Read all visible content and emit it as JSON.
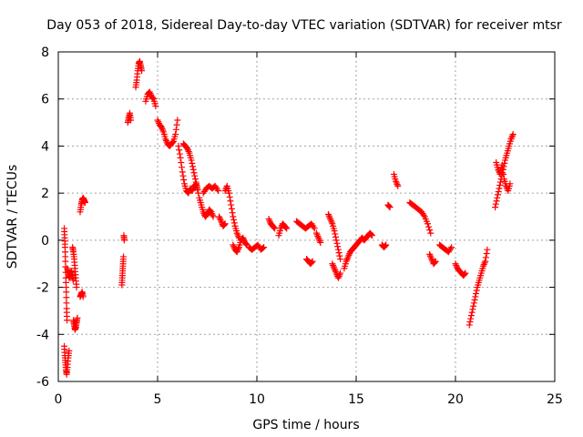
{
  "chart_data": {
    "type": "scatter",
    "title": "Day 053 of 2018, Sidereal Day-to-day VTEC variation (SDTVAR) for receiver mtsr",
    "xlabel": "GPS time / hours",
    "ylabel": "SDTVAR / TECUs",
    "xlim": [
      0,
      25
    ],
    "ylim": [
      -6,
      8
    ],
    "xticks": [
      0,
      5,
      10,
      15,
      20,
      25
    ],
    "yticks": [
      -6,
      -4,
      -2,
      0,
      2,
      4,
      6,
      8
    ],
    "grid": true,
    "marker": "+",
    "color": "#ff0000",
    "series": [
      {
        "name": "SDTVAR",
        "segments": [
          [
            [
              0.3,
              0.5
            ],
            [
              0.32,
              0.1
            ],
            [
              0.34,
              -0.3
            ],
            [
              0.36,
              -0.9
            ],
            [
              0.38,
              -1.6
            ],
            [
              0.4,
              -2.2
            ],
            [
              0.42,
              -2.9
            ],
            [
              0.44,
              -3.4
            ]
          ],
          [
            [
              0.3,
              -4.5
            ],
            [
              0.33,
              -4.9
            ],
            [
              0.36,
              -5.2
            ],
            [
              0.39,
              -5.5
            ],
            [
              0.42,
              -5.7
            ],
            [
              0.46,
              -5.4
            ],
            [
              0.5,
              -5.0
            ],
            [
              0.54,
              -4.7
            ]
          ],
          [
            [
              0.45,
              -1.2
            ],
            [
              0.5,
              -1.4
            ],
            [
              0.55,
              -1.6
            ],
            [
              0.6,
              -1.5
            ],
            [
              0.65,
              -1.3
            ],
            [
              0.7,
              -1.5
            ],
            [
              0.75,
              -1.7
            ]
          ],
          [
            [
              0.72,
              -0.3
            ],
            [
              0.76,
              -0.5
            ],
            [
              0.8,
              -0.8
            ],
            [
              0.84,
              -1.2
            ],
            [
              0.88,
              -1.6
            ],
            [
              0.92,
              -2.0
            ]
          ],
          [
            [
              0.76,
              -3.4
            ],
            [
              0.8,
              -3.6
            ],
            [
              0.84,
              -3.8
            ],
            [
              0.88,
              -3.7
            ],
            [
              0.92,
              -3.5
            ],
            [
              0.96,
              -3.3
            ]
          ],
          [
            [
              1.1,
              -2.4
            ],
            [
              1.15,
              -2.3
            ],
            [
              1.2,
              -2.2
            ],
            [
              1.25,
              -2.4
            ]
          ],
          [
            [
              1.1,
              1.2
            ],
            [
              1.15,
              1.5
            ],
            [
              1.2,
              1.7
            ],
            [
              1.25,
              1.8
            ],
            [
              1.3,
              1.7
            ],
            [
              1.35,
              1.6
            ]
          ],
          [
            [
              3.2,
              -1.9
            ],
            [
              3.22,
              -1.6
            ],
            [
              3.24,
              -1.3
            ],
            [
              3.26,
              -1.0
            ],
            [
              3.28,
              -0.7
            ]
          ],
          [
            [
              3.3,
              0.2
            ],
            [
              3.32,
              0.0
            ]
          ],
          [
            [
              3.5,
              5.0
            ],
            [
              3.55,
              5.2
            ],
            [
              3.6,
              5.4
            ],
            [
              3.65,
              5.1
            ]
          ],
          [
            [
              3.9,
              6.5
            ],
            [
              3.95,
              6.8
            ],
            [
              4.0,
              7.2
            ],
            [
              4.05,
              7.5
            ],
            [
              4.1,
              7.6
            ],
            [
              4.15,
              7.4
            ],
            [
              4.2,
              7.2
            ]
          ],
          [
            [
              4.4,
              5.9
            ],
            [
              4.5,
              6.2
            ],
            [
              4.6,
              6.3
            ],
            [
              4.7,
              6.1
            ],
            [
              4.8,
              6.0
            ],
            [
              4.9,
              5.7
            ]
          ],
          [
            [
              5.0,
              5.1
            ],
            [
              5.1,
              4.9
            ],
            [
              5.2,
              4.8
            ],
            [
              5.3,
              4.6
            ],
            [
              5.4,
              4.3
            ],
            [
              5.5,
              4.1
            ],
            [
              5.6,
              4.0
            ],
            [
              5.7,
              4.1
            ],
            [
              5.8,
              4.2
            ],
            [
              5.9,
              4.5
            ],
            [
              6.0,
              5.1
            ]
          ],
          [
            [
              6.05,
              4.0
            ],
            [
              6.15,
              3.5
            ],
            [
              6.25,
              2.9
            ],
            [
              6.35,
              2.4
            ],
            [
              6.45,
              2.1
            ],
            [
              6.55,
              2.0
            ],
            [
              6.65,
              2.2
            ],
            [
              6.75,
              2.1
            ],
            [
              6.85,
              2.3
            ],
            [
              6.95,
              2.4
            ],
            [
              7.05,
              2.0
            ]
          ],
          [
            [
              6.3,
              4.1
            ],
            [
              6.4,
              4.0
            ],
            [
              6.5,
              3.9
            ],
            [
              6.6,
              3.7
            ],
            [
              6.7,
              3.4
            ],
            [
              6.8,
              3.0
            ],
            [
              6.9,
              2.6
            ],
            [
              7.0,
              2.2
            ]
          ],
          [
            [
              7.1,
              1.8
            ],
            [
              7.2,
              1.5
            ],
            [
              7.3,
              1.2
            ],
            [
              7.4,
              1.0
            ],
            [
              7.5,
              1.1
            ],
            [
              7.6,
              1.3
            ],
            [
              7.7,
              1.2
            ],
            [
              7.8,
              1.0
            ]
          ],
          [
            [
              7.3,
              2.0
            ],
            [
              7.45,
              2.2
            ],
            [
              7.6,
              2.3
            ],
            [
              7.75,
              2.2
            ],
            [
              7.9,
              2.3
            ],
            [
              8.05,
              2.1
            ]
          ],
          [
            [
              8.1,
              1.0
            ],
            [
              8.2,
              0.8
            ],
            [
              8.3,
              0.6
            ],
            [
              8.4,
              0.7
            ]
          ],
          [
            [
              8.4,
              2.1
            ],
            [
              8.5,
              2.3
            ],
            [
              8.6,
              2.0
            ],
            [
              8.7,
              1.5
            ],
            [
              8.8,
              1.0
            ],
            [
              8.9,
              0.6
            ],
            [
              9.0,
              0.3
            ],
            [
              9.1,
              0.1
            ]
          ],
          [
            [
              8.8,
              -0.2
            ],
            [
              8.9,
              -0.4
            ],
            [
              9.0,
              -0.5
            ],
            [
              9.1,
              -0.3
            ],
            [
              9.2,
              0.0
            ],
            [
              9.3,
              0.1
            ],
            [
              9.4,
              -0.1
            ],
            [
              9.5,
              -0.2
            ]
          ],
          [
            [
              9.6,
              -0.3
            ],
            [
              9.75,
              -0.4
            ],
            [
              9.9,
              -0.3
            ],
            [
              10.05,
              -0.2
            ],
            [
              10.2,
              -0.4
            ],
            [
              10.35,
              -0.3
            ]
          ],
          [
            [
              10.6,
              0.9
            ],
            [
              10.7,
              0.7
            ],
            [
              10.8,
              0.6
            ],
            [
              10.9,
              0.5
            ]
          ],
          [
            [
              11.1,
              0.2
            ],
            [
              11.2,
              0.5
            ],
            [
              11.3,
              0.7
            ],
            [
              11.4,
              0.6
            ],
            [
              11.5,
              0.5
            ]
          ],
          [
            [
              12.0,
              0.8
            ],
            [
              12.15,
              0.7
            ],
            [
              12.3,
              0.6
            ],
            [
              12.45,
              0.5
            ],
            [
              12.6,
              0.6
            ],
            [
              12.75,
              0.7
            ],
            [
              12.9,
              0.5
            ]
          ],
          [
            [
              12.5,
              -0.8
            ],
            [
              12.6,
              -0.9
            ],
            [
              12.7,
              -1.0
            ],
            [
              12.8,
              -0.9
            ]
          ],
          [
            [
              13.0,
              0.3
            ],
            [
              13.1,
              0.1
            ],
            [
              13.2,
              -0.1
            ]
          ],
          [
            [
              13.6,
              1.1
            ],
            [
              13.7,
              0.9
            ],
            [
              13.8,
              0.7
            ],
            [
              13.9,
              0.4
            ],
            [
              14.0,
              0.0
            ],
            [
              14.1,
              -0.4
            ],
            [
              14.2,
              -0.8
            ]
          ],
          [
            [
              13.8,
              -1.0
            ],
            [
              13.9,
              -1.2
            ],
            [
              14.0,
              -1.4
            ],
            [
              14.1,
              -1.6
            ],
            [
              14.2,
              -1.4
            ]
          ],
          [
            [
              14.4,
              -1.2
            ],
            [
              14.5,
              -0.9
            ],
            [
              14.6,
              -0.7
            ],
            [
              14.7,
              -0.5
            ],
            [
              14.8,
              -0.4
            ],
            [
              14.9,
              -0.3
            ],
            [
              15.0,
              -0.2
            ],
            [
              15.1,
              -0.1
            ],
            [
              15.2,
              0.0
            ],
            [
              15.3,
              0.1
            ],
            [
              15.4,
              0.0
            ],
            [
              15.5,
              0.1
            ],
            [
              15.6,
              0.2
            ],
            [
              15.7,
              0.3
            ],
            [
              15.8,
              0.2
            ]
          ],
          [
            [
              16.3,
              -0.2
            ],
            [
              16.4,
              -0.3
            ],
            [
              16.5,
              -0.2
            ]
          ],
          [
            [
              16.6,
              1.5
            ],
            [
              16.7,
              1.4
            ]
          ],
          [
            [
              16.9,
              2.8
            ],
            [
              17.0,
              2.5
            ],
            [
              17.1,
              2.3
            ]
          ],
          [
            [
              17.7,
              1.6
            ],
            [
              17.85,
              1.5
            ],
            [
              18.0,
              1.4
            ],
            [
              18.15,
              1.3
            ],
            [
              18.3,
              1.2
            ],
            [
              18.45,
              1.0
            ],
            [
              18.6,
              0.7
            ],
            [
              18.75,
              0.3
            ]
          ],
          [
            [
              18.7,
              -0.6
            ],
            [
              18.8,
              -0.8
            ],
            [
              18.9,
              -1.0
            ],
            [
              19.0,
              -0.9
            ]
          ],
          [
            [
              19.2,
              -0.2
            ],
            [
              19.35,
              -0.3
            ],
            [
              19.5,
              -0.4
            ],
            [
              19.65,
              -0.5
            ],
            [
              19.8,
              -0.3
            ]
          ],
          [
            [
              20.0,
              -1.0
            ],
            [
              20.1,
              -1.2
            ],
            [
              20.2,
              -1.3
            ],
            [
              20.3,
              -1.4
            ],
            [
              20.4,
              -1.5
            ],
            [
              20.5,
              -1.4
            ]
          ],
          [
            [
              20.7,
              -3.6
            ],
            [
              20.8,
              -3.2
            ],
            [
              20.9,
              -2.8
            ],
            [
              21.0,
              -2.4
            ],
            [
              21.1,
              -2.0
            ],
            [
              21.2,
              -1.7
            ],
            [
              21.3,
              -1.4
            ],
            [
              21.4,
              -1.1
            ],
            [
              21.5,
              -0.9
            ],
            [
              21.6,
              -0.4
            ]
          ],
          [
            [
              22.0,
              1.4
            ],
            [
              22.1,
              1.8
            ],
            [
              22.2,
              2.2
            ],
            [
              22.3,
              2.6
            ],
            [
              22.4,
              3.0
            ],
            [
              22.5,
              3.4
            ],
            [
              22.6,
              3.7
            ],
            [
              22.7,
              4.0
            ],
            [
              22.8,
              4.3
            ],
            [
              22.9,
              4.5
            ]
          ],
          [
            [
              22.05,
              3.3
            ],
            [
              22.15,
              3.0
            ],
            [
              22.25,
              2.8
            ],
            [
              22.35,
              3.2
            ],
            [
              22.45,
              2.6
            ],
            [
              22.55,
              2.3
            ],
            [
              22.65,
              2.1
            ],
            [
              22.75,
              2.4
            ]
          ]
        ]
      }
    ]
  }
}
